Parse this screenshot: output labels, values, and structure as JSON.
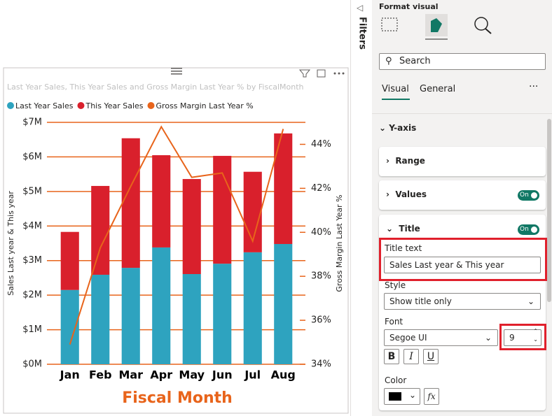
{
  "chart_data": {
    "type": "bar",
    "stacked": true,
    "title": "Last Year Sales, This Year Sales and Gross Margin Last Year % by FiscalMonth",
    "x_label": "Fiscal Month",
    "y_label": "Sales Last year & This year",
    "y2_label": "Gross Margin Last Year %",
    "categories": [
      "Jan",
      "Feb",
      "Mar",
      "Apr",
      "May",
      "Jun",
      "Jul",
      "Aug"
    ],
    "series": [
      {
        "name": "Last Year Sales",
        "color": "#2ea3bf",
        "values": [
          2150000,
          2590000,
          2790000,
          3380000,
          2610000,
          2910000,
          3240000,
          3480000
        ]
      },
      {
        "name": "This Year Sales",
        "color": "#d9202c",
        "values": [
          1680000,
          2570000,
          3750000,
          2670000,
          2750000,
          3120000,
          2330000,
          3200000
        ]
      },
      {
        "name": "Gross Margin Last Year %",
        "color": "#e8641b",
        "type": "line",
        "axis": "y2",
        "values": [
          34.9,
          39.3,
          42.1,
          44.8,
          42.5,
          42.7,
          39.6,
          44.7
        ]
      }
    ],
    "ylim": [
      0,
      7000000
    ],
    "yticks": [
      {
        "value": 0,
        "label": "$0M"
      },
      {
        "value": 1000000,
        "label": "$1M"
      },
      {
        "value": 2000000,
        "label": "$2M"
      },
      {
        "value": 3000000,
        "label": "$3M"
      },
      {
        "value": 4000000,
        "label": "$4M"
      },
      {
        "value": 5000000,
        "label": "$5M"
      },
      {
        "value": 6000000,
        "label": "$6M"
      },
      {
        "value": 7000000,
        "label": "$7M"
      }
    ],
    "y2lim": [
      34,
      45
    ],
    "y2ticks": [
      {
        "value": 34,
        "label": "34%"
      },
      {
        "value": 36,
        "label": "36%"
      },
      {
        "value": 38,
        "label": "38%"
      },
      {
        "value": 40,
        "label": "40%"
      },
      {
        "value": 42,
        "label": "42%"
      },
      {
        "value": 44,
        "label": "44%"
      }
    ],
    "grid": true,
    "grid_color": "#e8641b",
    "legend": "top-left"
  },
  "filters": {
    "label": "Filters"
  },
  "pane": {
    "title": "Format visual",
    "search": "Search",
    "tabs": [
      "Visual",
      "General"
    ],
    "sections": {
      "y_axis": "Y-axis",
      "range": "Range",
      "values": "Values",
      "title": "Title"
    },
    "toggles": {
      "values": "On",
      "title": "On"
    },
    "title_text": {
      "label": "Title text",
      "value": "Sales Last year & This year"
    },
    "style": {
      "label": "Style",
      "value": "Show title only"
    },
    "font": {
      "label": "Font",
      "family": "Segoe UI",
      "size": 9,
      "bold": "B",
      "italic": "I",
      "underline": "U"
    },
    "color": {
      "label": "Color",
      "fx": "fx"
    }
  }
}
